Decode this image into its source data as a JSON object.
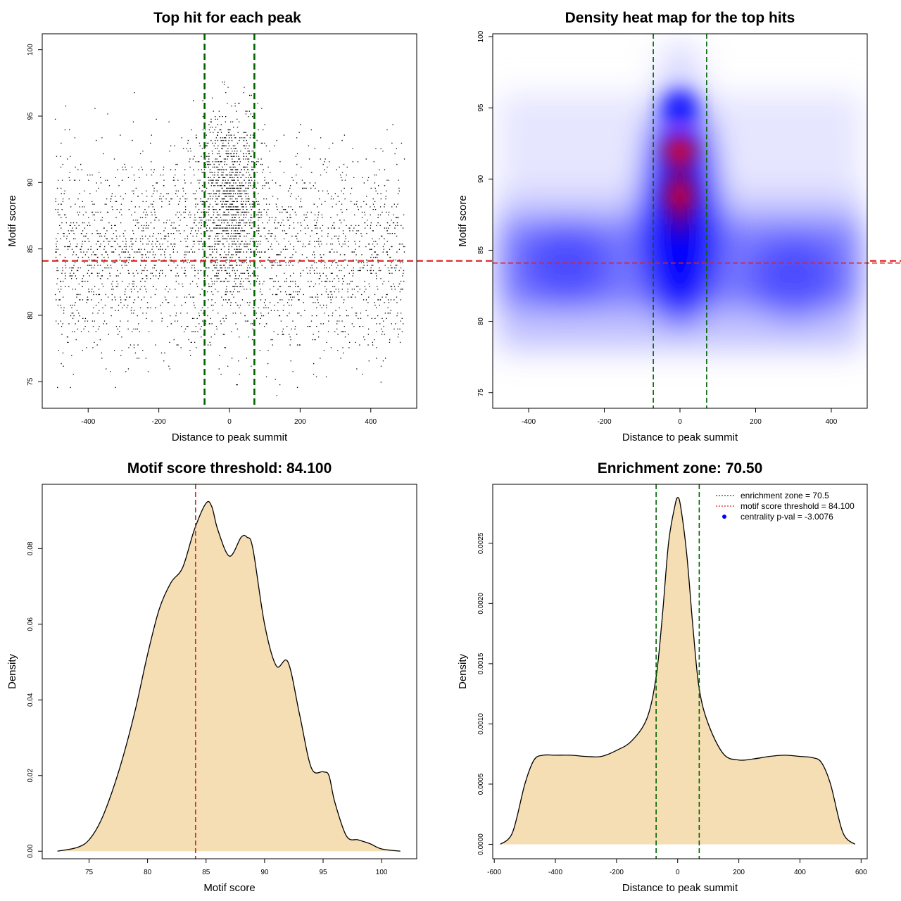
{
  "chart_data": [
    {
      "id": "scatter",
      "type": "scatter",
      "title": "Top hit for each peak",
      "xlabel": "Distance to peak summit",
      "ylabel": "Motif score",
      "xlim": [
        -530,
        530
      ],
      "ylim": [
        73,
        101.2
      ],
      "xticks": [
        "-400",
        "-200",
        "0",
        "200",
        "400"
      ],
      "yticks": [
        "75",
        "80",
        "85",
        "90",
        "95",
        "100"
      ],
      "point_count": 9000,
      "x_range": [
        -495,
        495
      ],
      "y_range": [
        74,
        100
      ],
      "vlines": [
        -70.5,
        70.5
      ],
      "hline": 84.1,
      "colors": {
        "points": "#000000",
        "enrichment": "#006400",
        "threshold": "#dd2222"
      }
    },
    {
      "id": "heatmap",
      "type": "heatmap",
      "title": "Density heat map for the top hits",
      "xlabel": "Distance to peak summit",
      "ylabel": "Motif score",
      "xlim": [
        -495,
        495
      ],
      "ylim": [
        73.9,
        100.2
      ],
      "xticks": [
        "-400",
        "-200",
        "0",
        "200",
        "400"
      ],
      "yticks": [
        "75",
        "80",
        "85",
        "90",
        "95",
        "100"
      ],
      "hotspots": [
        {
          "x": 0,
          "y": 88.8,
          "level": "high"
        },
        {
          "x": 0,
          "y": 92,
          "level": "high"
        },
        {
          "x": 0,
          "y": 95,
          "level": "medium"
        },
        {
          "x": -300,
          "y": 84,
          "level": "low"
        },
        {
          "x": 300,
          "y": 83,
          "level": "low"
        }
      ],
      "vlines": [
        -70.5,
        70.5
      ],
      "hline": 84.1,
      "colors": {
        "low": "#ffffff",
        "mid": "#0000ff",
        "high": "#ff0000",
        "enrichment": "#006400",
        "threshold": "#dd2222"
      }
    },
    {
      "id": "score-density",
      "type": "area",
      "title": "Motif score threshold: 84.100",
      "xlabel": "Motif score",
      "ylabel": "Density",
      "xlim": [
        71,
        103
      ],
      "ylim": [
        -0.002,
        0.097
      ],
      "xticks": [
        "75",
        "80",
        "85",
        "90",
        "95",
        "100"
      ],
      "yticks": [
        "0.00",
        "0.02",
        "0.04",
        "0.06",
        "0.08"
      ],
      "x": [
        72.3,
        74,
        75,
        76,
        77,
        78,
        79,
        80,
        81,
        82,
        83,
        84,
        85,
        85.5,
        86,
        87,
        88,
        88.5,
        89,
        90,
        91,
        92,
        93,
        94,
        95,
        95.5,
        96,
        97,
        98,
        99,
        100,
        101.6
      ],
      "y": [
        0,
        0.001,
        0.003,
        0.008,
        0.016,
        0.026,
        0.038,
        0.052,
        0.064,
        0.071,
        0.075,
        0.085,
        0.092,
        0.091,
        0.085,
        0.078,
        0.083,
        0.083,
        0.08,
        0.06,
        0.049,
        0.05,
        0.036,
        0.022,
        0.021,
        0.02,
        0.013,
        0.004,
        0.003,
        0.002,
        0.0006,
        0
      ],
      "vline": 84.1,
      "colors": {
        "fill": "#f5deb3",
        "line": "#000000",
        "threshold": "#dd2222"
      }
    },
    {
      "id": "distance-density",
      "type": "area",
      "title": "Enrichment zone: 70.50",
      "xlabel": "Distance to peak summit",
      "ylabel": "Density",
      "xlim": [
        -605,
        620
      ],
      "ylim": [
        -0.00012,
        0.00299
      ],
      "xticks": [
        "-600",
        "-400",
        "-200",
        "0",
        "200",
        "400",
        "600"
      ],
      "yticks": [
        "0.0000",
        "0.0005",
        "0.0010",
        "0.0015",
        "0.0020",
        "0.0025"
      ],
      "x": [
        -580,
        -540,
        -500,
        -470,
        -440,
        -400,
        -350,
        -300,
        -250,
        -200,
        -150,
        -100,
        -70,
        -50,
        -30,
        -10,
        0,
        10,
        30,
        50,
        70,
        100,
        150,
        200,
        250,
        300,
        350,
        400,
        440,
        470,
        500,
        540,
        580
      ],
      "y": [
        0,
        0.0001,
        0.0005,
        0.0007,
        0.00074,
        0.00074,
        0.00074,
        0.00073,
        0.00073,
        0.00078,
        0.00086,
        0.00105,
        0.0014,
        0.0019,
        0.0025,
        0.0028,
        0.00288,
        0.0028,
        0.0024,
        0.0018,
        0.0013,
        0.001,
        0.00075,
        0.0007,
        0.00071,
        0.00073,
        0.00074,
        0.00073,
        0.00072,
        0.00068,
        0.0005,
        0.0001,
        0
      ],
      "vlines": [
        -70.5,
        70.5
      ],
      "legend": {
        "position": "top-right",
        "items": [
          {
            "label": "enrichment zone = 70.5",
            "style": "dotted-line",
            "color": "#006400"
          },
          {
            "label": "motif score threshold = 84.100",
            "style": "dotted-line",
            "color": "#dd2222"
          },
          {
            "label": "centrality p-val = -3.0076",
            "style": "point",
            "color": "#0000ff"
          }
        ]
      },
      "colors": {
        "fill": "#f5deb3",
        "line": "#000000",
        "enrichment": "#006400"
      }
    }
  ]
}
